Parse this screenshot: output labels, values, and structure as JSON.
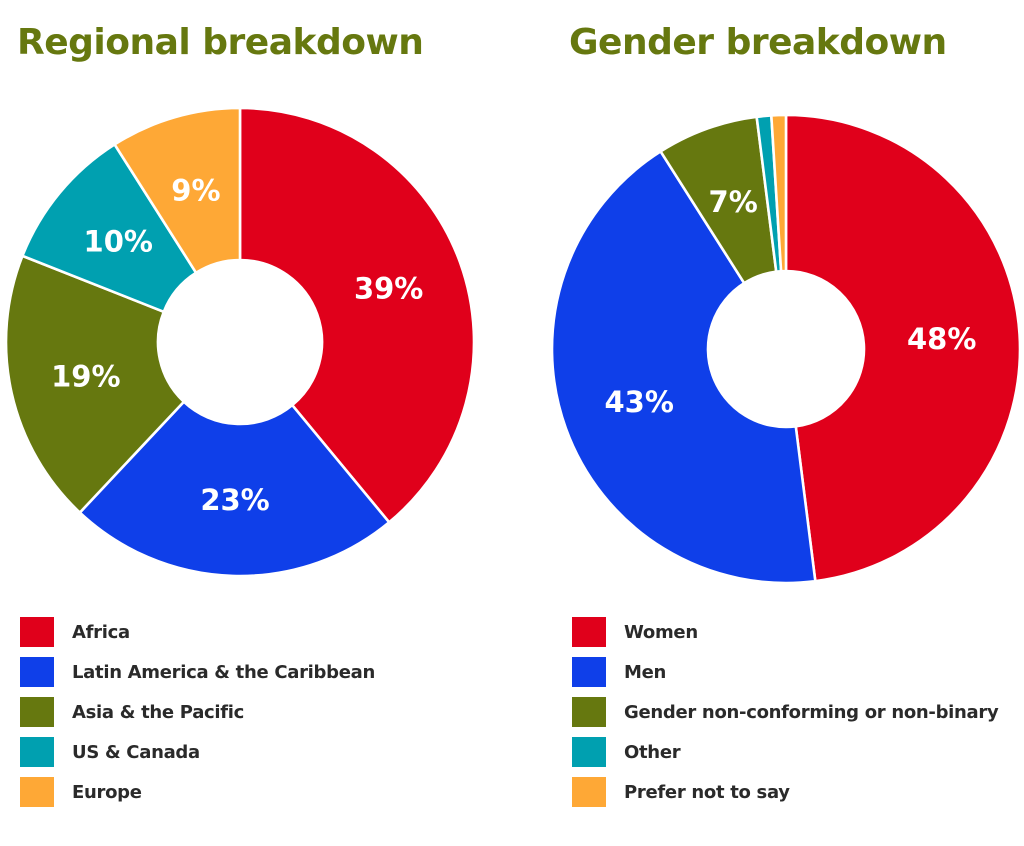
{
  "chart_data": [
    {
      "type": "pie",
      "title": "Regional breakdown",
      "categories": [
        "Africa",
        "Latin America & the Caribbean",
        "Asia & the Pacific",
        "US & Canada",
        "Europe"
      ],
      "values": [
        39,
        23,
        19,
        10,
        9
      ],
      "labels": [
        "39%",
        "23%",
        "19%",
        "10%",
        "9%"
      ],
      "colors": [
        "#e0001b",
        "#0f3fe9",
        "#66780f",
        "#00a0b0",
        "#fea836"
      ],
      "donut": true,
      "legend_position": "bottom"
    },
    {
      "type": "pie",
      "title": "Gender breakdown",
      "categories": [
        "Women",
        "Men",
        "Gender non-conforming or non-binary",
        "Other",
        "Prefer not to say"
      ],
      "values": [
        48,
        43,
        7,
        1,
        1
      ],
      "labels": [
        "48%",
        "43%",
        "7%",
        "",
        ""
      ],
      "colors": [
        "#e0001b",
        "#0f3fe9",
        "#66780f",
        "#00a0b0",
        "#fea836"
      ],
      "donut": true,
      "legend_position": "bottom"
    }
  ]
}
